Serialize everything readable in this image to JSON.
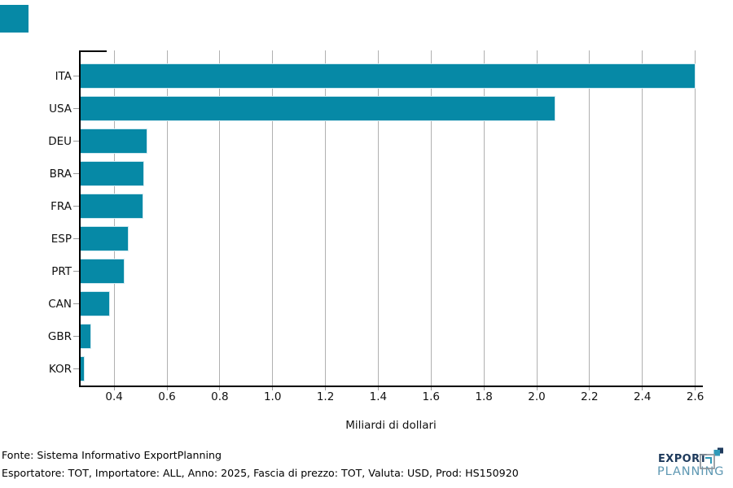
{
  "brand": {
    "corner_color": "#0689a6"
  },
  "chart_data": {
    "type": "bar",
    "orientation": "horizontal",
    "title": "",
    "categories": [
      "ITA",
      "USA",
      "DEU",
      "BRA",
      "FRA",
      "ESP",
      "PRT",
      "CAN",
      "GBR",
      "KOR"
    ],
    "values": [
      2.6,
      2.07,
      0.525,
      0.515,
      0.51,
      0.455,
      0.44,
      0.383,
      0.312,
      0.288
    ],
    "xlabel": "Miliardi di dollari",
    "x_ticks": [
      0.4,
      0.6,
      0.8,
      1.0,
      1.2,
      1.4,
      1.6,
      1.8,
      2.0,
      2.2,
      2.4,
      2.6
    ],
    "xlim": [
      0.27,
      2.626
    ],
    "grid": "vertical-gridlines-only",
    "legend": "none",
    "bar_color": "#0689a6",
    "bar_edge_color": "#cfe8f0",
    "grid_color": "#b0b0b0",
    "tick_color": "#999999"
  },
  "footer": {
    "source_line": "Fonte: Sistema Informativo ExportPlanning",
    "params_line": "Esportatore: TOT, Importatore: ALL, Anno: 2025, Fascia di prezzo: TOT, Valuta: USD, Prod: HS150920"
  },
  "logo": {
    "line1": "EXPORT",
    "line2": "PLANNING",
    "navy_color": "#1e3a5c",
    "blue_color": "#5d97b2",
    "icon_gray": "#8e959b",
    "icon_teal": "#2f9ab8"
  }
}
